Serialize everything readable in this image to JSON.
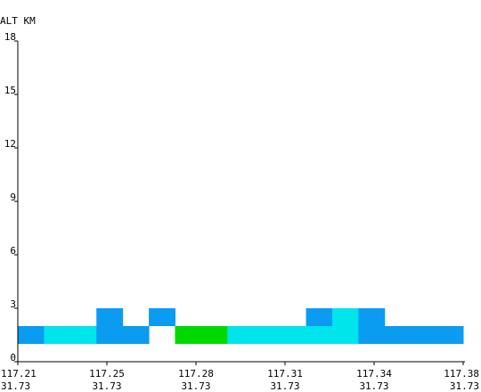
{
  "chart_data": {
    "type": "heatmap",
    "title": "",
    "ylabel": "ALT KM",
    "xlabel": "",
    "ylim": [
      0,
      18
    ],
    "y_ticks": [
      "18",
      "15",
      "12",
      "9",
      "6",
      "3",
      "0"
    ],
    "x_ticks": [
      {
        "lon": "117.21",
        "lat": "31.73"
      },
      {
        "lon": "117.25",
        "lat": "31.73"
      },
      {
        "lon": "117.28",
        "lat": "31.73"
      },
      {
        "lon": "117.31",
        "lat": "31.73"
      },
      {
        "lon": "117.34",
        "lat": "31.73"
      },
      {
        "lon": "117.38",
        "lat": "31.73"
      }
    ],
    "columns": 17,
    "cells": [
      {
        "col": 0,
        "alt_from": 1,
        "alt_to": 2,
        "color": "#0a9cf0"
      },
      {
        "col": 1,
        "alt_from": 1,
        "alt_to": 2,
        "color": "#00e4ec"
      },
      {
        "col": 2,
        "alt_from": 1,
        "alt_to": 2,
        "color": "#00e4ec"
      },
      {
        "col": 3,
        "alt_from": 1,
        "alt_to": 2,
        "color": "#0a9cf0"
      },
      {
        "col": 3,
        "alt_from": 2,
        "alt_to": 3,
        "color": "#0a9cf0"
      },
      {
        "col": 4,
        "alt_from": 1,
        "alt_to": 2,
        "color": "#0a9cf0"
      },
      {
        "col": 5,
        "alt_from": 2,
        "alt_to": 3,
        "color": "#0a9cf0"
      },
      {
        "col": 6,
        "alt_from": 1,
        "alt_to": 2,
        "color": "#00d800"
      },
      {
        "col": 7,
        "alt_from": 1,
        "alt_to": 2,
        "color": "#00d800"
      },
      {
        "col": 8,
        "alt_from": 1,
        "alt_to": 2,
        "color": "#00e4ec"
      },
      {
        "col": 9,
        "alt_from": 1,
        "alt_to": 2,
        "color": "#00e4ec"
      },
      {
        "col": 10,
        "alt_from": 1,
        "alt_to": 2,
        "color": "#00e4ec"
      },
      {
        "col": 11,
        "alt_from": 1,
        "alt_to": 2,
        "color": "#00e4ec"
      },
      {
        "col": 11,
        "alt_from": 2,
        "alt_to": 3,
        "color": "#0a9cf0"
      },
      {
        "col": 12,
        "alt_from": 1,
        "alt_to": 2,
        "color": "#00e4ec"
      },
      {
        "col": 12,
        "alt_from": 2,
        "alt_to": 3,
        "color": "#00e4ec"
      },
      {
        "col": 13,
        "alt_from": 1,
        "alt_to": 2,
        "color": "#0a9cf0"
      },
      {
        "col": 13,
        "alt_from": 2,
        "alt_to": 3,
        "color": "#0a9cf0"
      },
      {
        "col": 14,
        "alt_from": 1,
        "alt_to": 2,
        "color": "#0a9cf0"
      },
      {
        "col": 15,
        "alt_from": 1,
        "alt_to": 2,
        "color": "#0a9cf0"
      },
      {
        "col": 16,
        "alt_from": 1,
        "alt_to": 2,
        "color": "#0a9cf0"
      }
    ],
    "grid": false,
    "legend": "none"
  }
}
